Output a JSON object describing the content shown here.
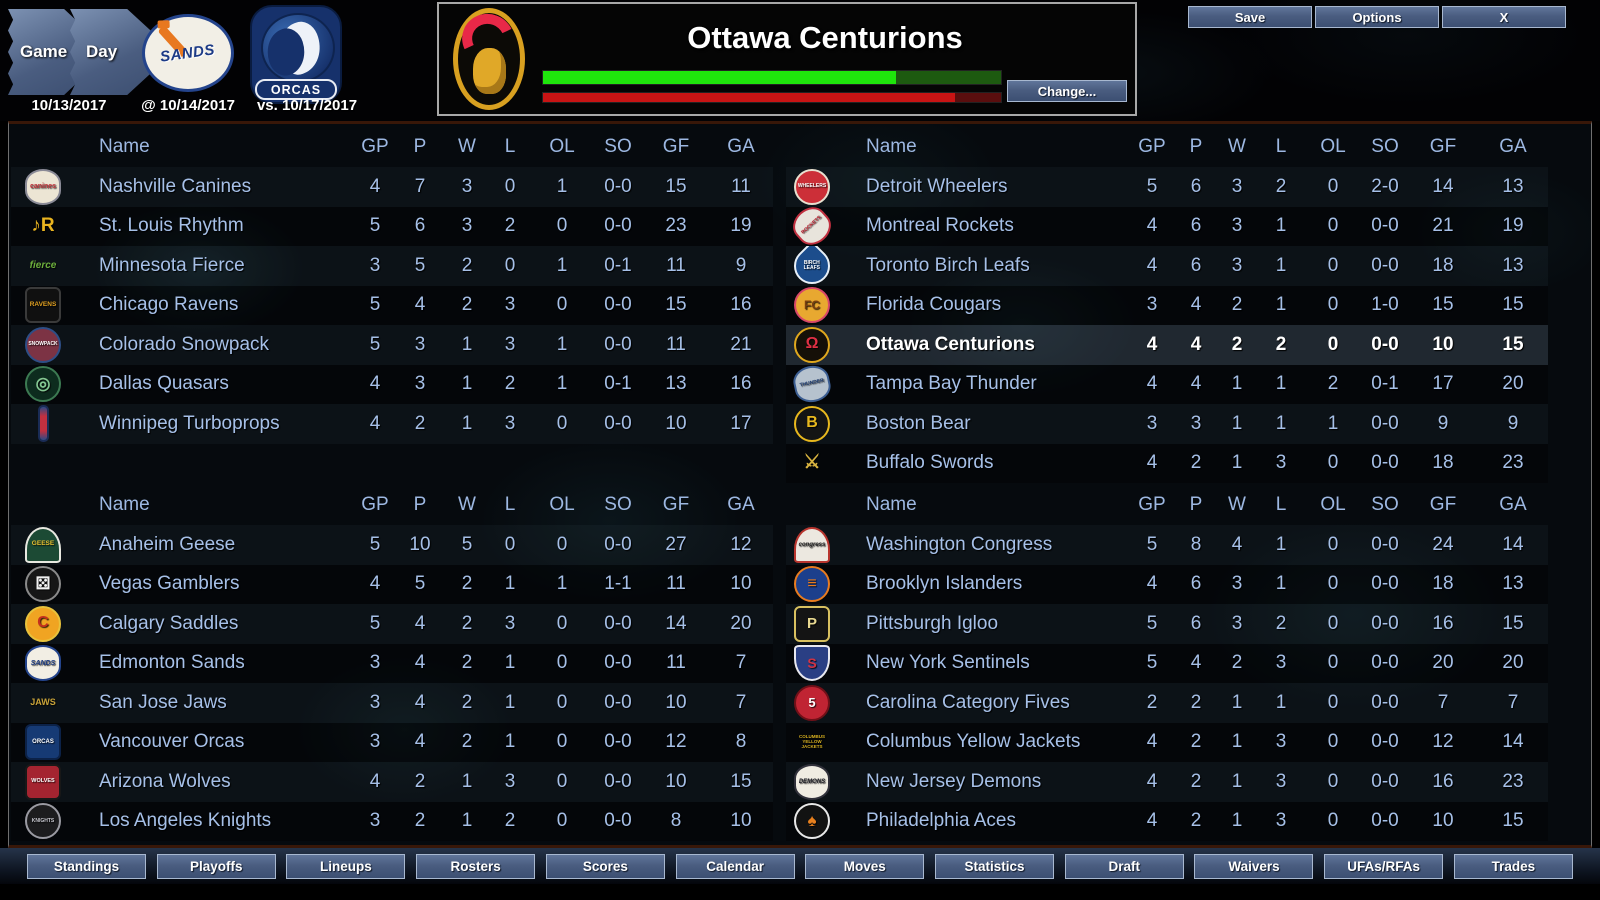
{
  "window_buttons": {
    "save": "Save",
    "options": "Options",
    "close": "X"
  },
  "gameday": {
    "game_label": "Game",
    "day_label": "Day",
    "current_date": "10/13/2017",
    "next_game_date": "@ 10/14/2017",
    "following_game_date": "vs. 10/17/2017",
    "next_team_label": "SANDS",
    "following_team_label": "ORCAS"
  },
  "team_header": {
    "title": "Ottawa Centurions",
    "change_label": "Change...",
    "bars": {
      "green_pct": 77,
      "green": "#1fe60c",
      "green_dark": "#1d5a10",
      "red_pct": 90,
      "red": "#c81414",
      "red_dark": "#5a0e0e"
    }
  },
  "theme": {
    "row_text": "#a6c0e8",
    "header_text": "#9db8e2",
    "highlight_text": "#ffffff",
    "button_bg": "#4a5d80",
    "panel_border": "#381708"
  },
  "standings": {
    "columns": [
      "Name",
      "GP",
      "P",
      "W",
      "L",
      "OL",
      "SO",
      "GF",
      "GA"
    ],
    "tables": [
      {
        "rows": [
          {
            "name": "Nashville Canines",
            "stats": [
              "4",
              "7",
              "3",
              "0",
              "1",
              "0-0",
              "15",
              "11"
            ],
            "logo": {
              "icon": "nashville-canines-logo",
              "shape": "oval",
              "bg": "#ece5d4",
              "border": "#8a8a96",
              "label": "canines",
              "color": "#c03038",
              "size": 7
            }
          },
          {
            "name": "St. Louis Rhythm",
            "stats": [
              "5",
              "6",
              "3",
              "2",
              "0",
              "0-0",
              "23",
              "19"
            ],
            "logo": {
              "icon": "st-louis-rhythm-logo",
              "shape": "plain",
              "label": "♪R",
              "color": "#e8b320",
              "size": 19
            }
          },
          {
            "name": "Minnesota Fierce",
            "stats": [
              "3",
              "5",
              "2",
              "0",
              "1",
              "0-1",
              "11",
              "9"
            ],
            "logo": {
              "icon": "minnesota-fierce-logo",
              "shape": "plain",
              "label": "fierce",
              "color": "#6cae3c",
              "size": 10,
              "italic": true
            }
          },
          {
            "name": "Chicago Ravens",
            "stats": [
              "5",
              "4",
              "2",
              "3",
              "0",
              "0-0",
              "15",
              "16"
            ],
            "logo": {
              "icon": "chicago-ravens-logo",
              "shape": "square",
              "bg": "#101010",
              "border": "#3a3a3a",
              "label": "RAVENS",
              "color": "#e0a020",
              "size": 6.5
            }
          },
          {
            "name": "Colorado Snowpack",
            "stats": [
              "5",
              "3",
              "1",
              "3",
              "1",
              "0-0",
              "11",
              "21"
            ],
            "logo": {
              "icon": "colorado-snowpack-logo",
              "shape": "circle",
              "bg": "#7c3344",
              "border": "#2e4e86",
              "label": "SNOWPACK",
              "color": "#ffffff",
              "size": 5
            }
          },
          {
            "name": "Dallas Quasars",
            "stats": [
              "4",
              "3",
              "1",
              "2",
              "1",
              "0-1",
              "13",
              "16"
            ],
            "logo": {
              "icon": "dallas-quasars-logo",
              "shape": "circle",
              "bg": "#0d2c1e",
              "border": "#3c7a52",
              "label": "◎",
              "color": "#84c892",
              "size": 17
            }
          },
          {
            "name": "Winnipeg Turboprops",
            "stats": [
              "4",
              "2",
              "1",
              "3",
              "0",
              "0-0",
              "10",
              "17"
            ],
            "logo": {
              "icon": "winnipeg-turboprops-logo",
              "shape": "vbar",
              "bg": "linear-gradient(#2c4a86,#c23040 28%,#c23040 72%,#2c4a86)",
              "border": "#1a2c56",
              "label": "",
              "color": "#fff",
              "size": 5
            }
          }
        ]
      },
      {
        "rows": [
          {
            "name": "Detroit Wheelers",
            "stats": [
              "5",
              "6",
              "3",
              "2",
              "0",
              "2-0",
              "14",
              "13"
            ],
            "logo": {
              "icon": "detroit-wheelers-logo",
              "shape": "circle",
              "bg": "#cc2f38",
              "border": "#e8e0d0",
              "label": "WHEELERS",
              "color": "#ffffff",
              "size": 5
            }
          },
          {
            "name": "Montreal Rockets",
            "stats": [
              "4",
              "6",
              "3",
              "1",
              "0",
              "0-0",
              "21",
              "19"
            ],
            "logo": {
              "icon": "montreal-rockets-logo",
              "shape": "oval",
              "bg": "#e8e4dc",
              "border": "#c03040",
              "label": "ROCKETS",
              "color": "#c02030",
              "size": 5,
              "rotate": -42
            }
          },
          {
            "name": "Toronto Birch Leafs",
            "stats": [
              "4",
              "6",
              "3",
              "1",
              "0",
              "0-0",
              "18",
              "13"
            ],
            "logo": {
              "icon": "toronto-birch-leafs-logo",
              "shape": "drop",
              "bg": "#1c4d8c",
              "border": "#e8f0f8",
              "label": "BIRCH LEAFS",
              "color": "#ffffff",
              "size": 5
            }
          },
          {
            "name": "Florida Cougars",
            "stats": [
              "3",
              "4",
              "2",
              "1",
              "0",
              "1-0",
              "15",
              "15"
            ],
            "logo": {
              "icon": "florida-cougars-logo",
              "shape": "circle",
              "bg": "#e8a830",
              "border": "#d84868",
              "label": "FC",
              "color": "#7a4010",
              "size": 12
            }
          },
          {
            "name": "Ottawa Centurions",
            "stats": [
              "4",
              "4",
              "2",
              "2",
              "0",
              "0-0",
              "10",
              "15"
            ],
            "highlight": true,
            "logo": {
              "icon": "ottawa-centurions-logo",
              "shape": "circle",
              "bg": "#151008",
              "border": "#e0a81e",
              "label": "Ω",
              "color": "#e03044",
              "size": 16
            }
          },
          {
            "name": "Tampa Bay Thunder",
            "stats": [
              "4",
              "4",
              "1",
              "1",
              "2",
              "0-1",
              "17",
              "20"
            ],
            "logo": {
              "icon": "tampa-bay-thunder-logo",
              "shape": "oval",
              "bg": "#b6c2ce",
              "border": "#3c5e92",
              "label": "THUNDER",
              "color": "#1c3a6e",
              "size": 5,
              "rotate": -12
            }
          },
          {
            "name": "Boston Bear",
            "stats": [
              "3",
              "3",
              "1",
              "1",
              "1",
              "0-0",
              "9",
              "9"
            ],
            "logo": {
              "icon": "boston-bear-logo",
              "shape": "circle",
              "bg": "#141414",
              "border": "#e8b81e",
              "label": "B",
              "color": "#e8b81e",
              "size": 16
            }
          },
          {
            "name": "Buffalo Swords",
            "stats": [
              "4",
              "2",
              "1",
              "3",
              "0",
              "0-0",
              "18",
              "23"
            ],
            "logo": {
              "icon": "buffalo-swords-logo",
              "shape": "plain",
              "label": "⚔",
              "color": "#d8b340",
              "size": 19
            }
          }
        ]
      },
      {
        "rows": [
          {
            "name": "Anaheim Geese",
            "stats": [
              "5",
              "10",
              "5",
              "0",
              "0",
              "0-0",
              "27",
              "12"
            ],
            "logo": {
              "icon": "anaheim-geese-logo",
              "shape": "dome",
              "bg": "#1c4a34",
              "border": "#e8e8e0",
              "label": "GEESE",
              "color": "#e8c030",
              "size": 6.5
            }
          },
          {
            "name": "Vegas Gamblers",
            "stats": [
              "4",
              "5",
              "2",
              "1",
              "1",
              "1-1",
              "11",
              "10"
            ],
            "logo": {
              "icon": "vegas-gamblers-logo",
              "shape": "circle",
              "bg": "#161616",
              "border": "#8a8a8a",
              "label": "⚄",
              "color": "#f0f0f0",
              "size": 17
            }
          },
          {
            "name": "Calgary Saddles",
            "stats": [
              "5",
              "4",
              "2",
              "3",
              "0",
              "0-0",
              "14",
              "20"
            ],
            "logo": {
              "icon": "calgary-saddles-logo",
              "shape": "circle",
              "bg": "#f0a422",
              "border": "#e8c23c",
              "label": "C",
              "color": "#c42f1e",
              "size": 16
            }
          },
          {
            "name": "Edmonton Sands",
            "stats": [
              "3",
              "4",
              "2",
              "1",
              "0",
              "0-0",
              "11",
              "7"
            ],
            "logo": {
              "icon": "edmonton-sands-logo",
              "shape": "oval",
              "bg": "#f2eee4",
              "border": "#24448c",
              "label": "SANDS",
              "color": "#1c3a80",
              "size": 7,
              "italic": true
            }
          },
          {
            "name": "San Jose Jaws",
            "stats": [
              "3",
              "4",
              "2",
              "1",
              "0",
              "0-0",
              "10",
              "7"
            ],
            "logo": {
              "icon": "san-jose-jaws-logo",
              "shape": "plain",
              "label": "JAWS",
              "color": "#c8a238",
              "size": 9
            }
          },
          {
            "name": "Vancouver Orcas",
            "stats": [
              "3",
              "4",
              "2",
              "1",
              "0",
              "0-0",
              "12",
              "8"
            ],
            "logo": {
              "icon": "vancouver-orcas-logo",
              "shape": "square",
              "bg": "#163a74",
              "border": "#0c2248",
              "label": "ORCAS",
              "color": "#ffffff",
              "size": 6
            }
          },
          {
            "name": "Arizona Wolves",
            "stats": [
              "4",
              "2",
              "1",
              "3",
              "0",
              "0-0",
              "10",
              "15"
            ],
            "logo": {
              "icon": "arizona-wolves-logo",
              "shape": "square",
              "bg": "#a42430",
              "border": "#181818",
              "label": "WOLVES",
              "color": "#ffffff",
              "size": 5.5
            }
          },
          {
            "name": "Los Angeles Knights",
            "stats": [
              "3",
              "2",
              "1",
              "2",
              "0",
              "0-0",
              "8",
              "10"
            ],
            "logo": {
              "icon": "los-angeles-knights-logo",
              "shape": "circle",
              "bg": "#1c1c1e",
              "border": "#9a9aa2",
              "label": "KNIGHTS",
              "color": "#c8c8d0",
              "size": 5
            }
          }
        ]
      },
      {
        "rows": [
          {
            "name": "Washington Congress",
            "stats": [
              "5",
              "8",
              "4",
              "1",
              "0",
              "0-0",
              "24",
              "14"
            ],
            "logo": {
              "icon": "washington-congress-logo",
              "shape": "dome",
              "bg": "#ece8e0",
              "border": "#b8352e",
              "label": "congress",
              "color": "#222222",
              "size": 6,
              "italic": true
            }
          },
          {
            "name": "Brooklyn Islanders",
            "stats": [
              "4",
              "6",
              "3",
              "1",
              "0",
              "0-0",
              "18",
              "13"
            ],
            "logo": {
              "icon": "brooklyn-islanders-logo",
              "shape": "circle",
              "bg": "#1c3f8c",
              "border": "#e87c20",
              "label": "≡",
              "color": "#e87c20",
              "size": 16
            }
          },
          {
            "name": "Pittsburgh Igloo",
            "stats": [
              "5",
              "6",
              "3",
              "2",
              "0",
              "0-0",
              "16",
              "15"
            ],
            "logo": {
              "icon": "pittsburgh-igloo-logo",
              "shape": "square",
              "bg": "#141414",
              "border": "#d8c060",
              "label": "P",
              "color": "#e8d890",
              "size": 15
            }
          },
          {
            "name": "New York Sentinels",
            "stats": [
              "5",
              "4",
              "2",
              "3",
              "0",
              "0-0",
              "20",
              "20"
            ],
            "logo": {
              "icon": "new-york-sentinels-logo",
              "shape": "shield",
              "bg": "#2a3f84",
              "border": "#e8e8f0",
              "label": "S",
              "color": "#d03344",
              "size": 14
            }
          },
          {
            "name": "Carolina Category Fives",
            "stats": [
              "2",
              "2",
              "1",
              "1",
              "0",
              "0-0",
              "7",
              "7"
            ],
            "logo": {
              "icon": "carolina-category-fives-logo",
              "shape": "circle",
              "bg": "#c02433",
              "border": "#701018",
              "label": "5",
              "color": "#ffffff",
              "size": 13
            }
          },
          {
            "name": "Columbus Yellow Jackets",
            "stats": [
              "4",
              "2",
              "1",
              "3",
              "0",
              "0-0",
              "12",
              "14"
            ],
            "logo": {
              "icon": "columbus-yellow-jackets-logo",
              "shape": "plain",
              "label": "COLUMBUS YELLOW JACKETS",
              "color": "#d8b020",
              "size": 4.5
            }
          },
          {
            "name": "New Jersey Demons",
            "stats": [
              "4",
              "2",
              "1",
              "3",
              "0",
              "0-0",
              "16",
              "23"
            ],
            "logo": {
              "icon": "new-jersey-demons-logo",
              "shape": "oval",
              "bg": "#f0ece2",
              "border": "#30303a",
              "label": "DEMONS",
              "color": "#1a1a22",
              "size": 6,
              "italic": true
            }
          },
          {
            "name": "Philadelphia Aces",
            "stats": [
              "4",
              "2",
              "1",
              "3",
              "0",
              "0-0",
              "10",
              "15"
            ],
            "logo": {
              "icon": "philadelphia-aces-logo",
              "shape": "circle",
              "bg": "#121212",
              "border": "#e8e8e8",
              "label": "♠",
              "color": "#e8801e",
              "size": 17
            }
          }
        ]
      }
    ]
  },
  "nav": {
    "items": [
      "Standings",
      "Playoffs",
      "Lineups",
      "Rosters",
      "Scores",
      "Calendar",
      "Moves",
      "Statistics",
      "Draft",
      "Waivers",
      "UFAs/RFAs",
      "Trades"
    ]
  }
}
